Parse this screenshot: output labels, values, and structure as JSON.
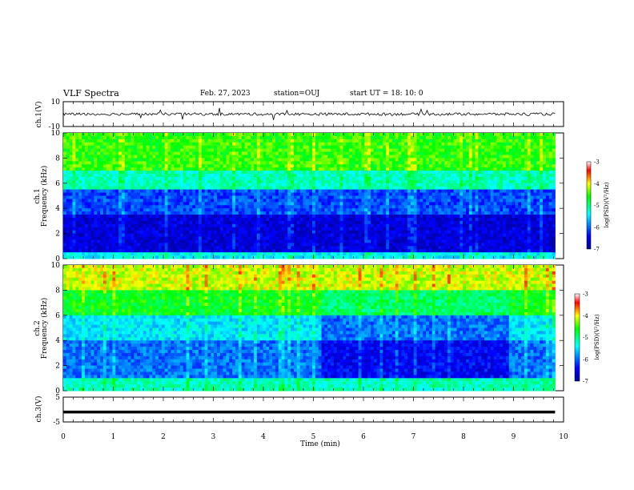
{
  "header": {
    "title": "VLF Spectra",
    "date": "Feb. 27, 2023",
    "station": "station=OUJ",
    "start": "start  UT =   18: 10: 0"
  },
  "chart_data": [
    {
      "type": "line",
      "panel": "ch1-waveform",
      "ylabel": "ch.1(V)",
      "ylim": [
        -10,
        10
      ],
      "yticks": [
        "10",
        "-10"
      ],
      "description_level": "near 0 V with small noise and spikes"
    },
    {
      "type": "heatmap",
      "panel": "ch1-spectrogram",
      "ylabel_line1": "ch.1",
      "ylabel_line2": "Frequency (kHz)",
      "ylim": [
        0,
        10
      ],
      "yticks": [
        "0",
        "2",
        "4",
        "6",
        "8",
        "10"
      ],
      "colorbar": {
        "label": "log(PSD)(V²/Hz)",
        "range": [
          -7,
          -3
        ],
        "ticks": [
          "-3",
          "-4",
          "-5",
          "-6",
          "-7"
        ]
      }
    },
    {
      "type": "heatmap",
      "panel": "ch2-spectrogram",
      "ylabel_line1": "ch.2",
      "ylabel_line2": "Frequency (kHz)",
      "ylim": [
        0,
        10
      ],
      "yticks": [
        "0",
        "2",
        "4",
        "6",
        "8",
        "10"
      ],
      "colorbar": {
        "label": "log(PSD)(V²/Hz)",
        "range": [
          -7,
          -3
        ],
        "ticks": [
          "-3",
          "-4",
          "-5",
          "-6",
          "-7"
        ]
      }
    },
    {
      "type": "line",
      "panel": "ch3-waveform",
      "ylabel": "ch.3(V)",
      "ylim": [
        -5,
        5
      ],
      "yticks": [
        "5",
        "-5"
      ],
      "level": -1
    }
  ],
  "xaxis": {
    "label": "Time (min)",
    "xlim": [
      0,
      10
    ],
    "ticks": [
      "0",
      "1",
      "2",
      "3",
      "4",
      "5",
      "6",
      "7",
      "8",
      "9",
      "10"
    ],
    "data_end": 9.83
  },
  "colors": {
    "colormap": [
      "#00008f",
      "#0000ff",
      "#00ffff",
      "#00ff00",
      "#ffff00",
      "#ff0000",
      "#ffffff"
    ]
  }
}
